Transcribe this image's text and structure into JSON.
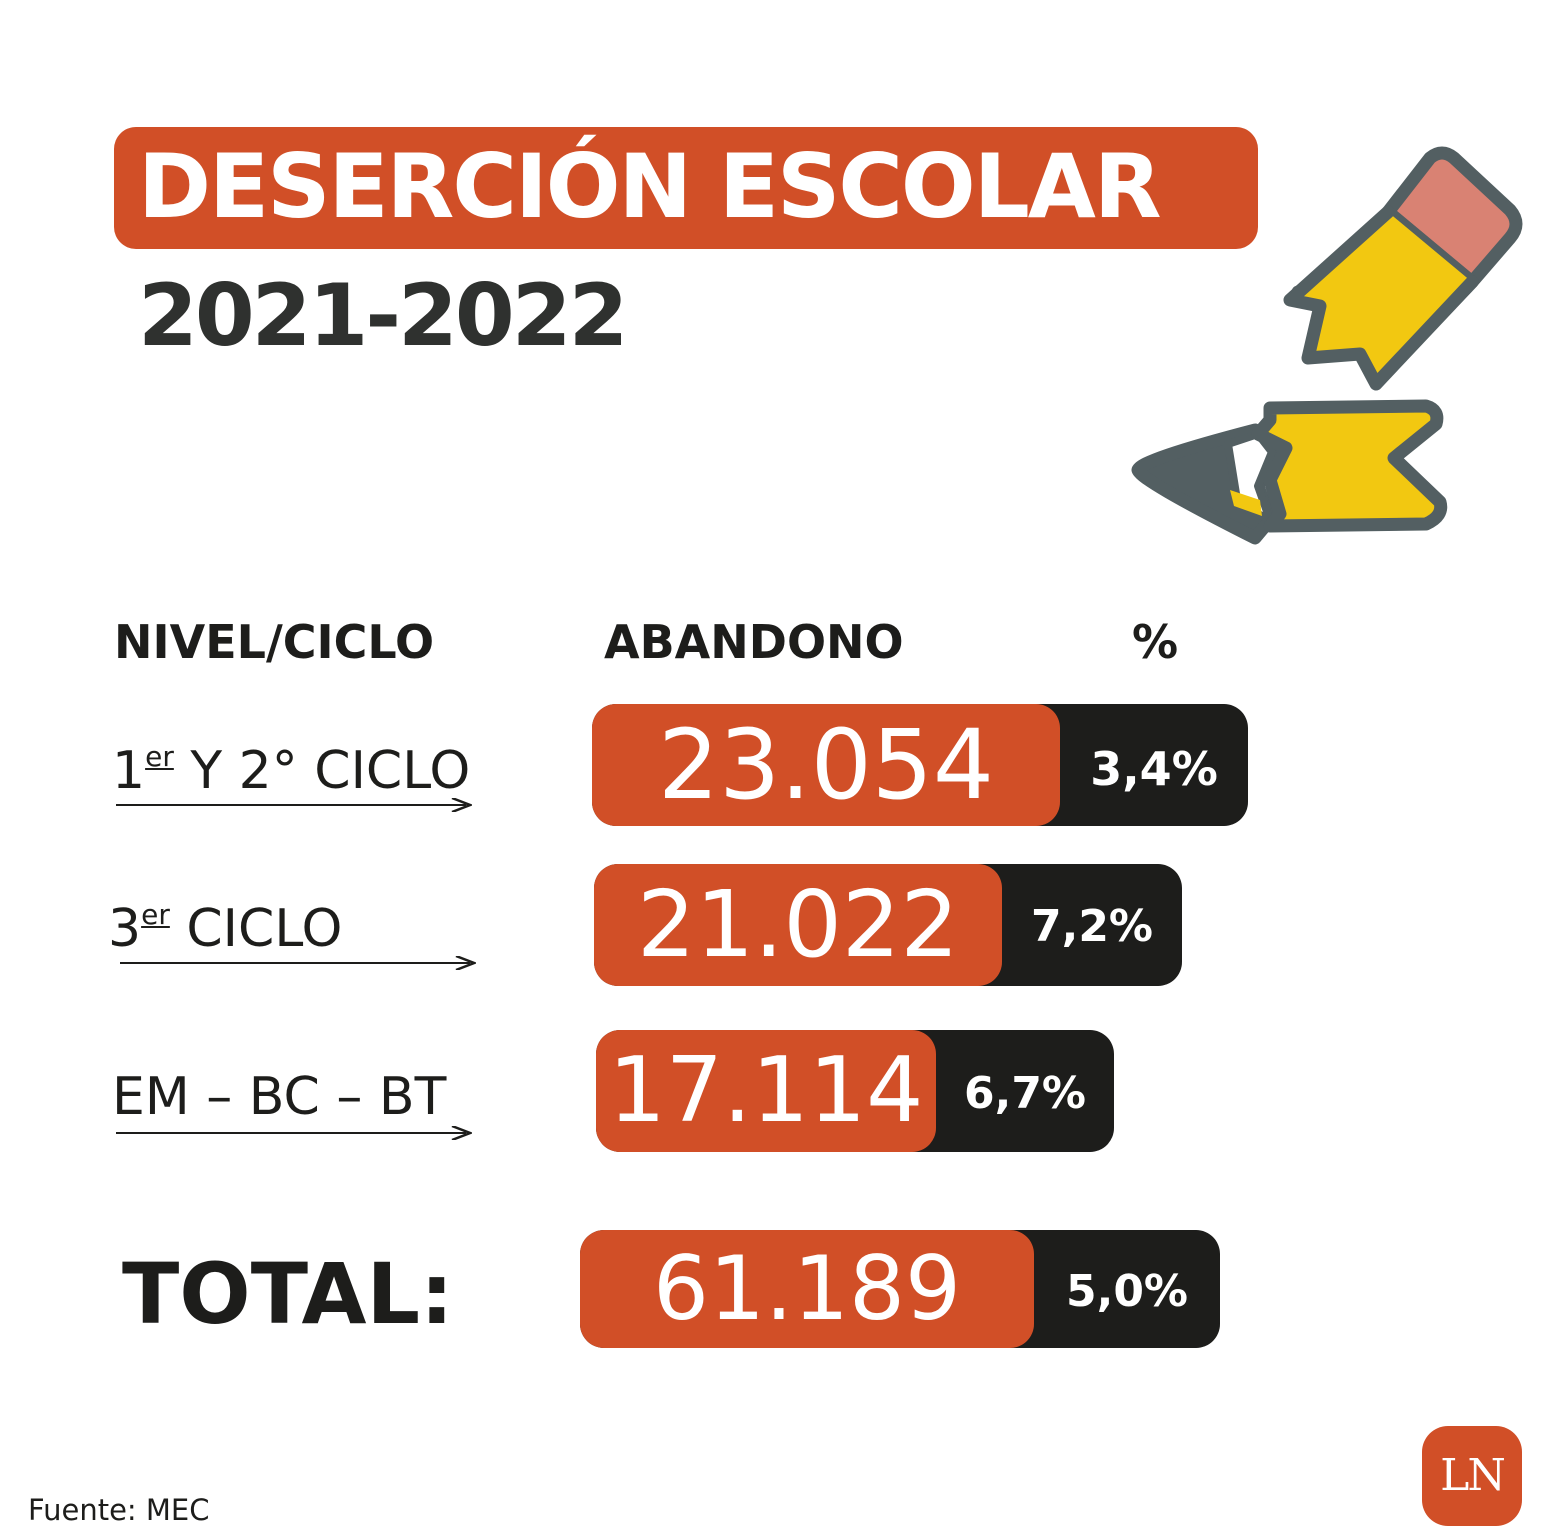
{
  "title": "DESERCIÓN ESCOLAR",
  "subtitle": "2021-2022",
  "headers": {
    "level": "NIVEL/CICLO",
    "dropout": "ABANDONO",
    "percent": "%"
  },
  "rows": [
    {
      "label_num": "1",
      "label_sup": "er",
      "label_rest": " Y 2° CICLO",
      "value": "23.054",
      "percent": "3,4%",
      "value_num": 23054,
      "percent_num": 3.4
    },
    {
      "label_num": "3",
      "label_sup": "er",
      "label_rest": "  CICLO",
      "value": "21.022",
      "percent": "7,2%",
      "value_num": 21022,
      "percent_num": 7.2
    },
    {
      "label_num": "",
      "label_sup": "",
      "label_rest": "EM – BC – BT",
      "value": "17.114",
      "percent": "6,7%",
      "value_num": 17114,
      "percent_num": 6.7
    }
  ],
  "total": {
    "label": "TOTAL:",
    "value": "61.189",
    "percent": "5,0%",
    "value_num": 61189,
    "percent_num": 5.0
  },
  "source": "Fuente: MEC",
  "logo": "LN",
  "colors": {
    "accent": "#d14f27",
    "dark": "#1d1d1b",
    "pencil_yellow": "#f2c811",
    "pencil_eraser": "#d98273",
    "pencil_outline": "#535f62"
  }
}
